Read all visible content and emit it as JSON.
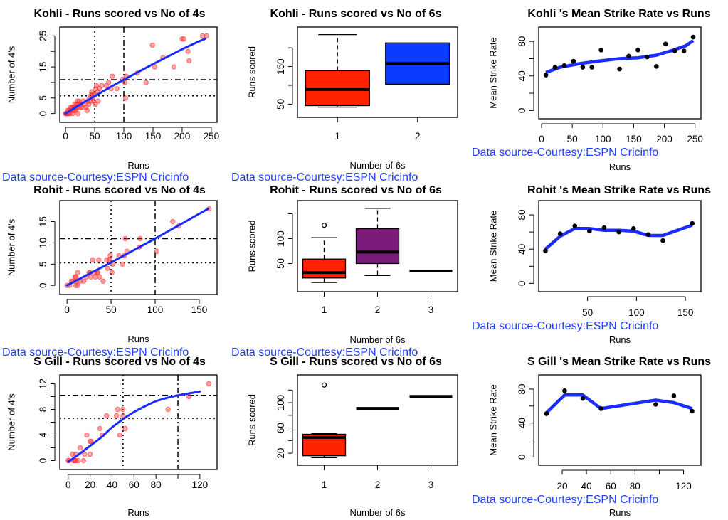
{
  "source_note": "Data source-Courtesy:ESPN Cricinfo",
  "colors": {
    "points": "#ff3030",
    "fit_line": "#1a2cff",
    "box_red": "#ff2200",
    "box_blue": "#0a3cff",
    "box_purple": "#7b1c7b",
    "source_text": "#1f3dff"
  },
  "chart_data": [
    {
      "id": "kohli-fours",
      "type": "scatter",
      "title": "Kohli - Runs scored vs No of 4s",
      "xlabel": "Runs",
      "ylabel": "Number of 4's",
      "xlim": [
        -5,
        255
      ],
      "ylim": [
        -1,
        26
      ],
      "xticks": [
        0,
        50,
        100,
        150,
        200,
        250
      ],
      "yticks": [
        0,
        5,
        10,
        15,
        20,
        25
      ],
      "ytick_labels": [
        "0",
        "5",
        "",
        "15",
        "",
        "25"
      ],
      "vlines": [
        {
          "x": 50,
          "style": "dotted"
        },
        {
          "x": 100,
          "style": "dashdot"
        }
      ],
      "hlines": [
        {
          "y": 5.7,
          "style": "dotted"
        },
        {
          "y": 10.9,
          "style": "dashdot"
        }
      ],
      "points": [
        [
          0,
          0
        ],
        [
          1,
          0
        ],
        [
          2,
          0
        ],
        [
          3,
          0
        ],
        [
          4,
          1
        ],
        [
          5,
          0
        ],
        [
          6,
          1
        ],
        [
          7,
          0
        ],
        [
          8,
          1
        ],
        [
          9,
          2
        ],
        [
          10,
          1
        ],
        [
          11,
          2
        ],
        [
          12,
          0
        ],
        [
          13,
          1
        ],
        [
          14,
          2
        ],
        [
          15,
          1
        ],
        [
          16,
          3
        ],
        [
          17,
          2
        ],
        [
          18,
          1
        ],
        [
          19,
          3
        ],
        [
          20,
          4
        ],
        [
          20,
          2
        ],
        [
          21,
          0
        ],
        [
          22,
          3
        ],
        [
          23,
          4
        ],
        [
          25,
          2
        ],
        [
          26,
          3
        ],
        [
          28,
          2
        ],
        [
          30,
          4
        ],
        [
          32,
          3
        ],
        [
          35,
          2
        ],
        [
          37,
          1
        ],
        [
          38,
          4
        ],
        [
          40,
          3
        ],
        [
          41,
          5
        ],
        [
          43,
          4
        ],
        [
          44,
          6
        ],
        [
          45,
          7
        ],
        [
          46,
          5
        ],
        [
          47,
          6
        ],
        [
          48,
          4
        ],
        [
          50,
          6
        ],
        [
          51,
          3
        ],
        [
          52,
          8
        ],
        [
          53,
          9
        ],
        [
          55,
          7
        ],
        [
          56,
          4
        ],
        [
          58,
          8
        ],
        [
          62,
          9
        ],
        [
          70,
          9
        ],
        [
          74,
          10
        ],
        [
          78,
          8
        ],
        [
          80,
          12
        ],
        [
          88,
          8
        ],
        [
          98,
          11
        ],
        [
          102,
          10
        ],
        [
          103,
          5
        ],
        [
          104,
          12
        ],
        [
          123,
          13
        ],
        [
          138,
          10
        ],
        [
          149,
          22
        ],
        [
          153,
          15
        ],
        [
          167,
          18
        ],
        [
          186,
          15
        ],
        [
          200,
          24
        ],
        [
          203,
          24
        ],
        [
          210,
          20
        ],
        [
          212,
          17
        ],
        [
          235,
          25
        ],
        [
          242,
          25
        ]
      ],
      "fit": [
        [
          0,
          0
        ],
        [
          25,
          2.9
        ],
        [
          50,
          5.6
        ],
        [
          75,
          8.3
        ],
        [
          100,
          10.9
        ],
        [
          125,
          13.4
        ],
        [
          150,
          15.9
        ],
        [
          175,
          18.3
        ],
        [
          200,
          20.7
        ],
        [
          225,
          22.9
        ],
        [
          240,
          24.1
        ]
      ]
    },
    {
      "id": "kohli-sixes",
      "type": "box",
      "title": "Kohli - Runs scored vs No of 6s",
      "xlabel": "Number of 6s",
      "ylabel": "Runs scored",
      "ylim": [
        30,
        240
      ],
      "yticks": [
        50,
        100,
        150,
        200
      ],
      "ytick_labels": [
        "50",
        "",
        "150",
        ""
      ],
      "categories": [
        "1",
        "2"
      ],
      "boxes": [
        {
          "group": "1",
          "min": 42,
          "q1": 46,
          "median": 89,
          "q3": 139,
          "max": 235,
          "fill": "#ff2200",
          "outliers": []
        },
        {
          "group": "2",
          "min": 103,
          "q1": 103,
          "median": 158,
          "q3": 213,
          "max": 213,
          "fill": "#0a3cff",
          "outliers": []
        }
      ]
    },
    {
      "id": "kohli-strike-rate",
      "type": "line",
      "title": "Kohli 's Mean Strike Rate vs Runs",
      "xlabel": "Runs",
      "ylabel": "Mean Strike Rate",
      "xlim": [
        0,
        255
      ],
      "ylim": [
        -3,
        90
      ],
      "xticks": [
        0,
        50,
        100,
        150,
        200,
        250
      ],
      "yticks": [
        0,
        20,
        40,
        60,
        80
      ],
      "ytick_labels": [
        "0",
        "",
        "40",
        "",
        "80"
      ],
      "points": [
        [
          7,
          41
        ],
        [
          22,
          50
        ],
        [
          37,
          52
        ],
        [
          52,
          57
        ],
        [
          67,
          50
        ],
        [
          82,
          50
        ],
        [
          97,
          70
        ],
        [
          127,
          48
        ],
        [
          142,
          63
        ],
        [
          157,
          70
        ],
        [
          172,
          62
        ],
        [
          187,
          51
        ],
        [
          202,
          77
        ],
        [
          217,
          69
        ],
        [
          232,
          69
        ],
        [
          247,
          85
        ]
      ],
      "fit": [
        [
          7,
          44
        ],
        [
          30,
          50
        ],
        [
          60,
          54
        ],
        [
          90,
          57
        ],
        [
          127,
          60
        ],
        [
          157,
          61
        ],
        [
          187,
          64
        ],
        [
          215,
          70
        ],
        [
          235,
          75
        ],
        [
          247,
          81
        ]
      ]
    },
    {
      "id": "rohit-fours",
      "type": "scatter",
      "title": "Rohit - Runs scored vs No of 4s",
      "xlabel": "Runs",
      "ylabel": "Number of 4's",
      "xlim": [
        -5,
        167
      ],
      "ylim": [
        -0.8,
        18.6
      ],
      "xticks": [
        0,
        50,
        100,
        150
      ],
      "yticks": [
        0,
        5,
        10,
        15
      ],
      "ytick_labels": [
        "0",
        "5",
        "10",
        "15"
      ],
      "vlines": [
        {
          "x": 50,
          "style": "dotted"
        },
        {
          "x": 100,
          "style": "dashdot"
        }
      ],
      "hlines": [
        {
          "y": 5.3,
          "style": "dotted"
        },
        {
          "y": 11,
          "style": "dashdot"
        }
      ],
      "points": [
        [
          0,
          0
        ],
        [
          3,
          0
        ],
        [
          5,
          1
        ],
        [
          7,
          1
        ],
        [
          9,
          2
        ],
        [
          10,
          2
        ],
        [
          10,
          0
        ],
        [
          11,
          1
        ],
        [
          12,
          3
        ],
        [
          12,
          0
        ],
        [
          15,
          1
        ],
        [
          19,
          1
        ],
        [
          22,
          2
        ],
        [
          25,
          3
        ],
        [
          26,
          3
        ],
        [
          27,
          2
        ],
        [
          29,
          6
        ],
        [
          31,
          3
        ],
        [
          32,
          2
        ],
        [
          34,
          3
        ],
        [
          35,
          3
        ],
        [
          36,
          6
        ],
        [
          37,
          2
        ],
        [
          41,
          1
        ],
        [
          45,
          6
        ],
        [
          46,
          4
        ],
        [
          48,
          6
        ],
        [
          49,
          7
        ],
        [
          51,
          3
        ],
        [
          52,
          5
        ],
        [
          59,
          7
        ],
        [
          63,
          5
        ],
        [
          65,
          7
        ],
        [
          66,
          11
        ],
        [
          68,
          8
        ],
        [
          82,
          9
        ],
        [
          83,
          11
        ],
        [
          102,
          8
        ],
        [
          120,
          15
        ],
        [
          127,
          14
        ],
        [
          161,
          18
        ]
      ],
      "fit": [
        [
          0,
          0
        ],
        [
          50,
          5.4
        ],
        [
          100,
          11
        ],
        [
          160,
          18
        ]
      ]
    },
    {
      "id": "rohit-sixes",
      "type": "box",
      "title": "Rohit - Runs scored vs No of 6s",
      "xlabel": "Number of 6s",
      "ylabel": "Runs scored",
      "ylim": [
        5,
        165
      ],
      "yticks": [
        50,
        100,
        150
      ],
      "ytick_labels": [
        "50",
        "100",
        ""
      ],
      "categories": [
        "1",
        "2",
        "3"
      ],
      "boxes": [
        {
          "group": "1",
          "min": 12,
          "q1": 21,
          "median": 32,
          "q3": 59,
          "max": 102,
          "fill": "#ff2200",
          "outliers": [
            127
          ]
        },
        {
          "group": "2",
          "min": 26,
          "q1": 50,
          "median": 73,
          "q3": 120,
          "max": 161,
          "fill": "#7b1c7b",
          "outliers": []
        },
        {
          "group": "3",
          "min": 35,
          "q1": 35,
          "median": 35,
          "q3": 35,
          "max": 35,
          "fill": "#000000",
          "outliers": []
        }
      ]
    },
    {
      "id": "rohit-strike-rate",
      "type": "line",
      "title": "Rohit 's Mean Strike Rate vs Runs",
      "xlabel": "Runs",
      "ylabel": "Mean Strike Rate",
      "xlim": [
        3,
        163
      ],
      "ylim": [
        -3,
        90
      ],
      "xticks": [
        50,
        100,
        150
      ],
      "yticks": [
        0,
        20,
        40,
        60,
        80
      ],
      "ytick_labels": [
        "0",
        "",
        "40",
        "",
        "80"
      ],
      "points": [
        [
          7,
          38
        ],
        [
          22,
          58
        ],
        [
          37,
          67
        ],
        [
          52,
          61
        ],
        [
          67,
          65
        ],
        [
          82,
          60
        ],
        [
          97,
          64
        ],
        [
          112,
          57
        ],
        [
          127,
          50
        ],
        [
          157,
          70
        ]
      ],
      "fit": [
        [
          7,
          40
        ],
        [
          22,
          55
        ],
        [
          37,
          64
        ],
        [
          52,
          64
        ],
        [
          67,
          62
        ],
        [
          82,
          62
        ],
        [
          97,
          61
        ],
        [
          112,
          56
        ],
        [
          127,
          56
        ],
        [
          157,
          68
        ]
      ]
    },
    {
      "id": "gill-fours",
      "type": "scatter",
      "title": "S Gill - Runs scored vs No of 4s",
      "xlabel": "Runs",
      "ylabel": "Number of 4's",
      "xlim": [
        -5,
        133
      ],
      "ylim": [
        -0.5,
        12.5
      ],
      "xticks": [
        0,
        20,
        40,
        60,
        80,
        100,
        120
      ],
      "xtick_labels": [
        "0",
        "20",
        "40",
        "60",
        "80",
        "",
        "120"
      ],
      "yticks": [
        0,
        2,
        4,
        6,
        8,
        10,
        12
      ],
      "ytick_labels": [
        "0",
        "",
        "4",
        "",
        "8",
        "",
        "12"
      ],
      "vlines": [
        {
          "x": 50,
          "style": "dotted"
        },
        {
          "x": 100,
          "style": "dashdot"
        }
      ],
      "hlines": [
        {
          "y": 6.6,
          "style": "dotted"
        },
        {
          "y": 10.2,
          "style": "dashdot"
        }
      ],
      "points": [
        [
          0,
          0
        ],
        [
          1,
          0
        ],
        [
          4,
          1
        ],
        [
          5,
          0
        ],
        [
          6,
          0
        ],
        [
          7,
          1
        ],
        [
          7,
          0
        ],
        [
          9,
          0
        ],
        [
          11,
          2
        ],
        [
          14,
          0
        ],
        [
          15,
          1
        ],
        [
          17,
          4
        ],
        [
          20,
          3
        ],
        [
          20,
          1
        ],
        [
          21,
          3
        ],
        [
          29,
          5
        ],
        [
          31,
          4
        ],
        [
          35,
          7
        ],
        [
          44,
          7
        ],
        [
          45,
          8
        ],
        [
          47,
          4
        ],
        [
          50,
          8
        ],
        [
          50,
          7
        ],
        [
          52,
          5
        ],
        [
          91,
          8
        ],
        [
          110,
          10
        ],
        [
          128,
          12
        ]
      ],
      "fit": [
        [
          0,
          -0.2
        ],
        [
          10,
          1
        ],
        [
          20,
          2.3
        ],
        [
          30,
          3.6
        ],
        [
          40,
          5.2
        ],
        [
          50,
          6.5
        ],
        [
          60,
          7.6
        ],
        [
          70,
          8.5
        ],
        [
          80,
          9.3
        ],
        [
          90,
          9.8
        ],
        [
          100,
          10.2
        ],
        [
          110,
          10.5
        ],
        [
          120,
          10.8
        ]
      ]
    },
    {
      "id": "gill-sixes",
      "type": "box",
      "title": "S Gill - Runs scored vs No of 6s",
      "xlabel": "Number of 6s",
      "ylabel": "Runs scored",
      "ylim": [
        10,
        135
      ],
      "yticks": [
        20,
        40,
        60,
        80,
        100,
        120
      ],
      "ytick_labels": [
        "20",
        "",
        "60",
        "",
        "100",
        ""
      ],
      "categories": [
        "1",
        "2",
        "3"
      ],
      "boxes": [
        {
          "group": "1",
          "min": 13,
          "q1": 16,
          "median": 45,
          "q3": 50,
          "max": 51,
          "fill": "#ff2200",
          "outliers": [
            128
          ]
        },
        {
          "group": "2",
          "min": 91,
          "q1": 91,
          "median": 91,
          "q3": 91,
          "max": 91,
          "fill": "#000000",
          "outliers": []
        },
        {
          "group": "3",
          "min": 110,
          "q1": 110,
          "median": 110,
          "q3": 110,
          "max": 110,
          "fill": "#000000",
          "outliers": []
        }
      ]
    },
    {
      "id": "gill-strike-rate",
      "type": "line",
      "title": "S Gill 's Mean Strike Rate vs Runs",
      "xlabel": "Runs",
      "ylabel": "Mean Strike Rate",
      "xlim": [
        3,
        132
      ],
      "ylim": [
        -3,
        90
      ],
      "xticks": [
        20,
        40,
        60,
        80,
        100,
        120
      ],
      "xtick_labels": [
        "20",
        "40",
        "60",
        "80",
        "",
        "120"
      ],
      "yticks": [
        0,
        20,
        40,
        60,
        80
      ],
      "ytick_labels": [
        "0",
        "",
        "40",
        "",
        "80"
      ],
      "points": [
        [
          7,
          51
        ],
        [
          22,
          78
        ],
        [
          37,
          69
        ],
        [
          52,
          57
        ],
        [
          97,
          62
        ],
        [
          112,
          72
        ],
        [
          127,
          54
        ]
      ],
      "fit": [
        [
          7,
          52
        ],
        [
          22,
          73
        ],
        [
          37,
          73
        ],
        [
          52,
          57
        ],
        [
          97,
          67
        ],
        [
          112,
          64
        ],
        [
          127,
          57
        ]
      ]
    }
  ]
}
